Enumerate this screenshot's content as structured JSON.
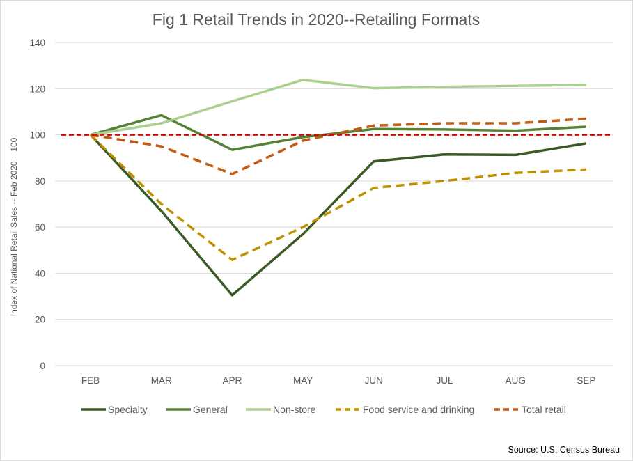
{
  "chart_data": {
    "type": "line",
    "title": "Fig 1 Retail Trends in 2020--Retailing Formats",
    "xlabel": "",
    "ylabel": "Index of National Retail Sales -- Feb 2020 = 100",
    "categories": [
      "FEB",
      "MAR",
      "APR",
      "MAY",
      "JUN",
      "JUL",
      "AUG",
      "SEP"
    ],
    "ylim": [
      0,
      140
    ],
    "yticks": [
      0,
      20,
      40,
      60,
      80,
      100,
      120,
      140
    ],
    "grid": true,
    "legend_position": "bottom",
    "reference_line": {
      "value": 100,
      "color": "#e00000",
      "style": "dashed"
    },
    "series": [
      {
        "name": "Specialty",
        "color": "#3a5a23",
        "dash": "solid",
        "values": [
          100,
          67,
          30.5,
          57,
          88.5,
          91.5,
          91.3,
          96.3
        ]
      },
      {
        "name": "General",
        "color": "#548235",
        "dash": "solid",
        "values": [
          100,
          108.5,
          93.5,
          99,
          102.5,
          102.3,
          101.8,
          103.5
        ]
      },
      {
        "name": "Non-store",
        "color": "#a9d18e",
        "dash": "solid",
        "values": [
          100,
          105,
          114.5,
          123.8,
          120.2,
          120.8,
          121.2,
          121.7
        ]
      },
      {
        "name": "Food service and drinking",
        "color": "#bf9000",
        "dash": "dashed",
        "values": [
          100,
          70,
          45.8,
          60,
          77,
          80,
          83.5,
          85
        ]
      },
      {
        "name": "Total retail",
        "color": "#c55a11",
        "dash": "dashed",
        "values": [
          100,
          95,
          83,
          97.5,
          104,
          105,
          105,
          107
        ]
      }
    ]
  },
  "source_note": "Source: U.S. Census Bureau"
}
